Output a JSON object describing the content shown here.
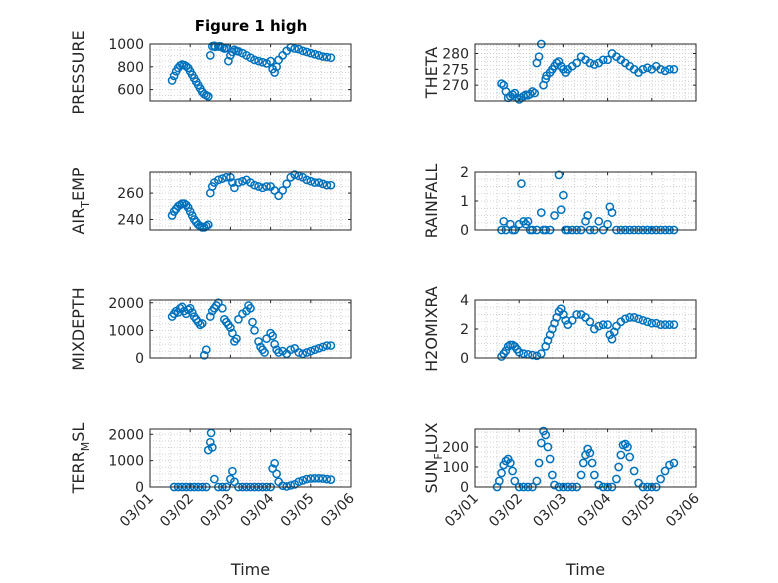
{
  "figure": {
    "title": "Figure 1 high",
    "marker_color": "#0072BD"
  },
  "chart_data": [
    {
      "type": "scatter",
      "ylabel": "PRESSURE",
      "ylim": [
        500,
        1000
      ],
      "yticks": [
        600,
        800,
        1000
      ],
      "xlim": [
        0,
        5
      ],
      "xticks": [
        "03/01",
        "03/02",
        "03/03",
        "03/04",
        "03/05",
        "03/06"
      ],
      "x": [
        0.55,
        0.6,
        0.65,
        0.7,
        0.75,
        0.8,
        0.85,
        0.9,
        0.95,
        1.0,
        1.05,
        1.1,
        1.15,
        1.2,
        1.25,
        1.3,
        1.35,
        1.4,
        1.45,
        1.5,
        1.55,
        1.6,
        1.62,
        1.7,
        1.75,
        1.8,
        1.85,
        1.9,
        1.95,
        2.0,
        2.05,
        2.1,
        2.15,
        2.2,
        2.3,
        2.4,
        2.5,
        2.6,
        2.7,
        2.8,
        2.9,
        3.0,
        3.05,
        3.1,
        3.15,
        3.2,
        3.3,
        3.4,
        3.5,
        3.6,
        3.7,
        3.8,
        3.9,
        4.0,
        4.1,
        4.2,
        4.3,
        4.4,
        4.5
      ],
      "y": [
        680,
        720,
        760,
        790,
        810,
        820,
        815,
        805,
        790,
        760,
        730,
        700,
        670,
        640,
        610,
        580,
        560,
        550,
        540,
        900,
        980,
        985,
        975,
        978,
        980,
        970,
        960,
        965,
        850,
        900,
        930,
        950,
        940,
        935,
        920,
        900,
        880,
        860,
        850,
        840,
        830,
        850,
        780,
        750,
        800,
        860,
        900,
        940,
        970,
        960,
        955,
        940,
        930,
        920,
        910,
        900,
        890,
        885,
        880
      ]
    },
    {
      "type": "scatter",
      "ylabel": "THETA",
      "ylim": [
        265,
        283
      ],
      "yticks": [
        270,
        275,
        280
      ],
      "xlim": [
        0,
        5
      ],
      "xticks": [
        "03/01",
        "03/02",
        "03/03",
        "03/04",
        "03/05",
        "03/06"
      ],
      "x": [
        0.6,
        0.65,
        0.7,
        0.75,
        0.8,
        0.85,
        0.9,
        0.95,
        1.0,
        1.05,
        1.1,
        1.15,
        1.2,
        1.25,
        1.3,
        1.35,
        1.4,
        1.45,
        1.5,
        1.55,
        1.6,
        1.62,
        1.7,
        1.75,
        1.8,
        1.85,
        1.9,
        1.95,
        2.0,
        2.05,
        2.1,
        2.2,
        2.3,
        2.4,
        2.5,
        2.6,
        2.7,
        2.8,
        2.9,
        3.0,
        3.1,
        3.2,
        3.3,
        3.4,
        3.5,
        3.6,
        3.7,
        3.8,
        3.9,
        4.0,
        4.1,
        4.2,
        4.3,
        4.4,
        4.5
      ],
      "y": [
        270.5,
        270,
        268,
        266,
        266.5,
        267,
        267.5,
        266,
        265.5,
        266,
        266.5,
        267,
        266.8,
        267.2,
        268,
        267.5,
        277,
        279,
        283,
        270,
        272,
        273,
        274,
        275,
        276,
        277,
        277.5,
        276,
        275,
        274,
        275,
        276,
        277,
        279,
        278,
        277,
        276.5,
        277,
        278,
        278,
        280,
        279,
        278,
        277,
        276,
        275,
        274,
        275,
        275.5,
        275,
        276,
        275,
        274.5,
        275,
        275
      ]
    },
    {
      "type": "scatter",
      "ylabel": "AIR_TEMP",
      "ylim": [
        232,
        276
      ],
      "yticks": [
        240,
        260
      ],
      "xlim": [
        0,
        5
      ],
      "xticks": [
        "03/01",
        "03/02",
        "03/03",
        "03/04",
        "03/05",
        "03/06"
      ],
      "x": [
        0.55,
        0.6,
        0.65,
        0.7,
        0.75,
        0.8,
        0.85,
        0.9,
        0.95,
        1.0,
        1.05,
        1.1,
        1.15,
        1.2,
        1.25,
        1.3,
        1.35,
        1.4,
        1.45,
        1.5,
        1.55,
        1.6,
        1.7,
        1.8,
        1.9,
        2.0,
        2.05,
        2.1,
        2.2,
        2.3,
        2.4,
        2.5,
        2.6,
        2.7,
        2.8,
        2.9,
        3.0,
        3.1,
        3.2,
        3.3,
        3.4,
        3.5,
        3.6,
        3.7,
        3.8,
        3.9,
        4.0,
        4.1,
        4.2,
        4.3,
        4.4,
        4.5
      ],
      "y": [
        243,
        246,
        248,
        250,
        251,
        252,
        252,
        251,
        249,
        246,
        243,
        240,
        238,
        236,
        235,
        234,
        234,
        235,
        236,
        260,
        265,
        268,
        270,
        271,
        272,
        272,
        268,
        264,
        268,
        269,
        270,
        268,
        266,
        265,
        264,
        265,
        265,
        262,
        258,
        262,
        267,
        272,
        274,
        273,
        272,
        270,
        269,
        268,
        268,
        267,
        266,
        266
      ]
    },
    {
      "type": "scatter",
      "ylabel": "RAINFALL",
      "ylim": [
        0,
        2
      ],
      "yticks": [
        0,
        1,
        2
      ],
      "xlim": [
        0,
        5
      ],
      "xticks": [
        "03/01",
        "03/02",
        "03/03",
        "03/04",
        "03/05",
        "03/06"
      ],
      "x": [
        0.6,
        0.65,
        0.7,
        0.8,
        0.85,
        0.9,
        1.0,
        1.05,
        1.1,
        1.15,
        1.2,
        1.25,
        1.3,
        1.4,
        1.5,
        1.55,
        1.6,
        1.7,
        1.8,
        1.9,
        1.95,
        2.0,
        2.05,
        2.1,
        2.2,
        2.3,
        2.4,
        2.5,
        2.55,
        2.6,
        2.7,
        2.8,
        2.9,
        3.0,
        3.05,
        3.1,
        3.2,
        3.3,
        3.4,
        3.5,
        3.6,
        3.7,
        3.8,
        3.9,
        4.0,
        4.1,
        4.2,
        4.3,
        4.4,
        4.5
      ],
      "y": [
        0,
        0.3,
        0,
        0.2,
        0,
        0,
        0.2,
        1.6,
        0.3,
        0.2,
        0.3,
        0,
        0,
        0,
        0.6,
        0,
        0,
        0,
        0.5,
        1.9,
        0.7,
        1.2,
        0,
        0,
        0,
        0,
        0,
        0.3,
        0.5,
        0,
        0,
        0.3,
        0,
        0.2,
        0.8,
        0.6,
        0,
        0,
        0,
        0,
        0,
        0,
        0,
        0,
        0,
        0,
        0,
        0,
        0,
        0
      ]
    },
    {
      "type": "scatter",
      "ylabel": "MIXDEPTH",
      "ylim": [
        0,
        2100
      ],
      "yticks": [
        0,
        1000,
        2000
      ],
      "xlim": [
        0,
        5
      ],
      "xticks": [
        "03/01",
        "03/02",
        "03/03",
        "03/04",
        "03/05",
        "03/06"
      ],
      "x": [
        0.55,
        0.6,
        0.65,
        0.7,
        0.75,
        0.8,
        0.85,
        0.9,
        0.95,
        1.0,
        1.05,
        1.1,
        1.15,
        1.2,
        1.25,
        1.3,
        1.35,
        1.4,
        1.5,
        1.55,
        1.6,
        1.65,
        1.7,
        1.8,
        1.85,
        1.9,
        1.95,
        2.0,
        2.05,
        2.1,
        2.15,
        2.2,
        2.3,
        2.4,
        2.45,
        2.5,
        2.55,
        2.6,
        2.7,
        2.75,
        2.8,
        2.85,
        2.9,
        3.0,
        3.05,
        3.1,
        3.15,
        3.2,
        3.3,
        3.4,
        3.5,
        3.6,
        3.7,
        3.8,
        3.9,
        4.0,
        4.1,
        4.2,
        4.3,
        4.4,
        4.5
      ],
      "y": [
        1500,
        1600,
        1700,
        1650,
        1800,
        1850,
        1700,
        1600,
        1750,
        1800,
        1650,
        1500,
        1400,
        1300,
        1200,
        1250,
        100,
        300,
        1500,
        1700,
        1800,
        1900,
        2000,
        1800,
        1400,
        1300,
        1200,
        1100,
        900,
        600,
        700,
        1400,
        1600,
        1700,
        1900,
        1800,
        1300,
        1000,
        600,
        400,
        300,
        200,
        700,
        900,
        800,
        500,
        300,
        200,
        250,
        150,
        300,
        350,
        200,
        150,
        200,
        250,
        300,
        350,
        400,
        450,
        450
      ]
    },
    {
      "type": "scatter",
      "ylabel": "H2OMIXRA",
      "ylim": [
        0,
        4
      ],
      "yticks": [
        0,
        2,
        4
      ],
      "xlim": [
        0,
        5
      ],
      "xticks": [
        "03/01",
        "03/02",
        "03/03",
        "03/04",
        "03/05",
        "03/06"
      ],
      "x": [
        0.6,
        0.65,
        0.7,
        0.75,
        0.8,
        0.85,
        0.9,
        0.95,
        1.0,
        1.1,
        1.2,
        1.3,
        1.4,
        1.5,
        1.6,
        1.65,
        1.7,
        1.75,
        1.8,
        1.85,
        1.9,
        1.95,
        2.0,
        2.05,
        2.1,
        2.2,
        2.3,
        2.4,
        2.5,
        2.6,
        2.7,
        2.8,
        2.9,
        3.0,
        3.05,
        3.1,
        3.15,
        3.2,
        3.3,
        3.4,
        3.5,
        3.6,
        3.7,
        3.8,
        3.9,
        4.0,
        4.1,
        4.2,
        4.3,
        4.4,
        4.5
      ],
      "y": [
        0.1,
        0.3,
        0.5,
        0.8,
        0.9,
        0.9,
        0.8,
        0.6,
        0.4,
        0.3,
        0.25,
        0.2,
        0.15,
        0.3,
        0.8,
        1.2,
        1.6,
        2.0,
        2.4,
        2.8,
        3.2,
        3.4,
        3.0,
        2.6,
        2.3,
        2.6,
        3.0,
        3.0,
        2.8,
        2.5,
        2.0,
        2.2,
        2.3,
        2.3,
        1.6,
        1.3,
        1.8,
        2.2,
        2.5,
        2.7,
        2.8,
        2.8,
        2.7,
        2.6,
        2.5,
        2.4,
        2.4,
        2.3,
        2.3,
        2.3,
        2.3
      ]
    },
    {
      "type": "scatter",
      "ylabel": "TERR_MSL",
      "ylim": [
        0,
        2200
      ],
      "yticks": [
        0,
        1000,
        2000
      ],
      "xlim": [
        0,
        5
      ],
      "xticks": [
        "03/01",
        "03/02",
        "03/03",
        "03/04",
        "03/05",
        "03/06"
      ],
      "x": [
        0.6,
        0.7,
        0.8,
        0.9,
        1.0,
        1.1,
        1.2,
        1.3,
        1.4,
        1.45,
        1.5,
        1.52,
        1.55,
        1.6,
        1.7,
        1.8,
        1.9,
        2.0,
        2.05,
        2.1,
        2.2,
        2.3,
        2.4,
        2.5,
        2.6,
        2.7,
        2.8,
        2.9,
        3.0,
        3.05,
        3.1,
        3.15,
        3.2,
        3.3,
        3.4,
        3.5,
        3.6,
        3.7,
        3.8,
        3.9,
        4.0,
        4.1,
        4.2,
        4.3,
        4.4,
        4.5
      ],
      "y": [
        0,
        0,
        0,
        0,
        0,
        0,
        0,
        0,
        0,
        1400,
        1700,
        2050,
        1500,
        300,
        0,
        0,
        0,
        300,
        600,
        200,
        0,
        0,
        0,
        0,
        0,
        0,
        0,
        0,
        0,
        700,
        900,
        500,
        200,
        50,
        20,
        60,
        100,
        200,
        250,
        300,
        320,
        330,
        330,
        320,
        300,
        280
      ]
    },
    {
      "type": "scatter",
      "ylabel": "SUN_FLUX",
      "ylim": [
        0,
        290
      ],
      "yticks": [
        0,
        100,
        200
      ],
      "xlim": [
        0,
        5
      ],
      "xticks": [
        "03/01",
        "03/02",
        "03/03",
        "03/04",
        "03/05",
        "03/06"
      ],
      "x": [
        0.5,
        0.55,
        0.6,
        0.65,
        0.7,
        0.75,
        0.8,
        0.85,
        0.9,
        1.0,
        1.1,
        1.2,
        1.3,
        1.4,
        1.45,
        1.5,
        1.55,
        1.6,
        1.65,
        1.7,
        1.75,
        1.8,
        1.9,
        2.0,
        2.1,
        2.2,
        2.3,
        2.4,
        2.45,
        2.5,
        2.55,
        2.6,
        2.65,
        2.7,
        2.8,
        2.9,
        3.0,
        3.1,
        3.2,
        3.25,
        3.3,
        3.35,
        3.4,
        3.45,
        3.5,
        3.6,
        3.7,
        3.8,
        3.9,
        4.0,
        4.1,
        4.2,
        4.3,
        4.4,
        4.5
      ],
      "y": [
        0,
        30,
        70,
        110,
        130,
        140,
        120,
        80,
        30,
        0,
        0,
        0,
        0,
        30,
        120,
        220,
        280,
        260,
        200,
        140,
        60,
        10,
        0,
        0,
        0,
        0,
        0,
        60,
        120,
        160,
        190,
        170,
        120,
        60,
        10,
        0,
        0,
        0,
        40,
        100,
        160,
        210,
        215,
        200,
        150,
        80,
        20,
        0,
        0,
        0,
        0,
        40,
        80,
        110,
        120
      ]
    }
  ]
}
